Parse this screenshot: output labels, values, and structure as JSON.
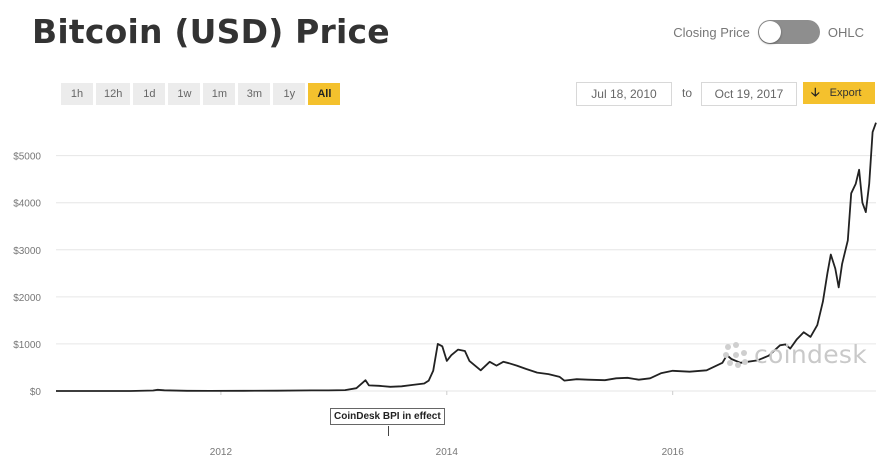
{
  "header": {
    "title": "Bitcoin (USD) Price",
    "toggle": {
      "left_label": "Closing Price",
      "right_label": "OHLC"
    }
  },
  "controls": {
    "ranges": [
      "1h",
      "12h",
      "1d",
      "1w",
      "1m",
      "3m",
      "1y",
      "All"
    ],
    "active_range": "All",
    "date_from": "Jul 18, 2010",
    "to_label": "to",
    "date_to": "Oct 19, 2017",
    "export_label": "Export"
  },
  "watermark": {
    "text": "coindesk"
  },
  "annotation": {
    "text": "CoinDesk BPI in effect"
  },
  "colors": {
    "accent": "#f4c12d",
    "line": "#222222",
    "grid": "#e6e6e6",
    "watermark": "#c9c9c9"
  },
  "chart_data": {
    "type": "line",
    "title": "Bitcoin (USD) Price",
    "xlabel": "",
    "ylabel": "",
    "x_tick_labels": [
      "2012",
      "2014",
      "2016"
    ],
    "y_tick_labels": [
      "$0",
      "$1000",
      "$2000",
      "$3000",
      "$4000",
      "$5000"
    ],
    "y_ticks": [
      0,
      1000,
      2000,
      3000,
      4000,
      5000
    ],
    "ylim": [
      0,
      5800
    ],
    "xlim": [
      2010.54,
      2017.8
    ],
    "grid": true,
    "series": [
      {
        "values": [
          [
            2010.54,
            0.1
          ],
          [
            2010.8,
            0.2
          ],
          [
            2011.0,
            0.3
          ],
          [
            2011.2,
            1
          ],
          [
            2011.4,
            10
          ],
          [
            2011.44,
            26
          ],
          [
            2011.5,
            15
          ],
          [
            2011.7,
            5
          ],
          [
            2011.9,
            3
          ],
          [
            2012.2,
            5
          ],
          [
            2012.5,
            7
          ],
          [
            2012.8,
            12
          ],
          [
            2012.95,
            13
          ],
          [
            2013.1,
            20
          ],
          [
            2013.2,
            60
          ],
          [
            2013.28,
            230
          ],
          [
            2013.31,
            120
          ],
          [
            2013.4,
            110
          ],
          [
            2013.5,
            90
          ],
          [
            2013.6,
            100
          ],
          [
            2013.7,
            130
          ],
          [
            2013.8,
            160
          ],
          [
            2013.84,
            220
          ],
          [
            2013.88,
            430
          ],
          [
            2013.92,
            1000
          ],
          [
            2013.96,
            950
          ],
          [
            2014.0,
            640
          ],
          [
            2014.04,
            760
          ],
          [
            2014.1,
            880
          ],
          [
            2014.16,
            850
          ],
          [
            2014.2,
            640
          ],
          [
            2014.3,
            440
          ],
          [
            2014.38,
            620
          ],
          [
            2014.44,
            540
          ],
          [
            2014.5,
            620
          ],
          [
            2014.55,
            590
          ],
          [
            2014.62,
            540
          ],
          [
            2014.7,
            470
          ],
          [
            2014.8,
            390
          ],
          [
            2014.9,
            360
          ],
          [
            2015.0,
            300
          ],
          [
            2015.04,
            220
          ],
          [
            2015.15,
            250
          ],
          [
            2015.25,
            240
          ],
          [
            2015.4,
            230
          ],
          [
            2015.5,
            270
          ],
          [
            2015.6,
            280
          ],
          [
            2015.7,
            240
          ],
          [
            2015.8,
            270
          ],
          [
            2015.9,
            380
          ],
          [
            2016.0,
            430
          ],
          [
            2016.15,
            410
          ],
          [
            2016.3,
            440
          ],
          [
            2016.44,
            600
          ],
          [
            2016.48,
            760
          ],
          [
            2016.52,
            680
          ],
          [
            2016.6,
            600
          ],
          [
            2016.75,
            650
          ],
          [
            2016.85,
            750
          ],
          [
            2016.95,
            970
          ],
          [
            2017.0,
            990
          ],
          [
            2017.04,
            900
          ],
          [
            2017.1,
            1100
          ],
          [
            2017.16,
            1250
          ],
          [
            2017.22,
            1150
          ],
          [
            2017.28,
            1400
          ],
          [
            2017.33,
            1900
          ],
          [
            2017.37,
            2500
          ],
          [
            2017.4,
            2900
          ],
          [
            2017.44,
            2600
          ],
          [
            2017.47,
            2200
          ],
          [
            2017.5,
            2700
          ],
          [
            2017.55,
            3200
          ],
          [
            2017.58,
            4200
          ],
          [
            2017.62,
            4400
          ],
          [
            2017.65,
            4700
          ],
          [
            2017.68,
            4000
          ],
          [
            2017.71,
            3800
          ],
          [
            2017.74,
            4400
          ],
          [
            2017.77,
            5500
          ],
          [
            2017.8,
            5700
          ]
        ]
      }
    ]
  }
}
